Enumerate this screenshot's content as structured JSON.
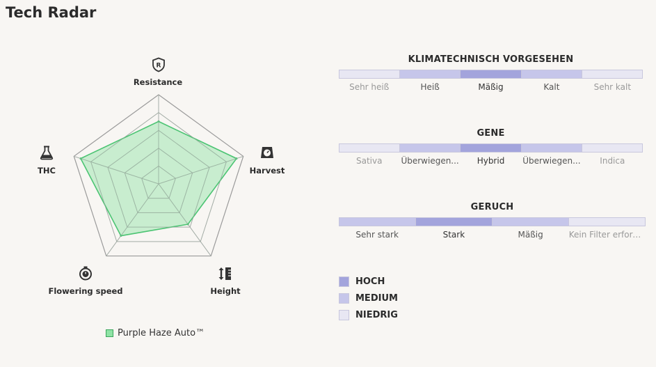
{
  "page": {
    "title": "Tech Radar"
  },
  "chart_data": {
    "type": "radar",
    "axes": [
      "Resistance",
      "Harvest",
      "Height",
      "Flowering speed",
      "THC"
    ],
    "axis_icons": [
      "shield-r-icon",
      "scale-icon",
      "height-ruler-icon",
      "stopwatch-icon",
      "flask-icon"
    ],
    "levels": 5,
    "range": [
      0,
      5
    ],
    "series": [
      {
        "name": "Purple Haze Auto™",
        "values": [
          3.5,
          4.6,
          2.8,
          3.6,
          4.6
        ],
        "fill": "#8fe3a5",
        "stroke": "#4cc473"
      }
    ]
  },
  "legend": {
    "label": "Purple Haze Auto™"
  },
  "scales": [
    {
      "title": "KLIMATECHNISCH VORGESEHEN",
      "segments": [
        {
          "label": "Sehr heiß",
          "level": "niedrig"
        },
        {
          "label": "Heiß",
          "level": "medium"
        },
        {
          "label": "Mäßig",
          "level": "hoch"
        },
        {
          "label": "Kalt",
          "level": "medium"
        },
        {
          "label": "Sehr kalt",
          "level": "niedrig"
        }
      ]
    },
    {
      "title": "GENE",
      "segments": [
        {
          "label": "Sativa",
          "level": "niedrig"
        },
        {
          "label": "Überwiegen...",
          "level": "medium"
        },
        {
          "label": "Hybrid",
          "level": "hoch"
        },
        {
          "label": "Überwiegen...",
          "level": "medium"
        },
        {
          "label": "Indica",
          "level": "niedrig"
        }
      ]
    },
    {
      "title": "GERUCH",
      "segments": [
        {
          "label": "Sehr stark",
          "level": "medium"
        },
        {
          "label": "Stark",
          "level": "hoch"
        },
        {
          "label": "Mäßig",
          "level": "medium"
        },
        {
          "label": "Kein Filter erforderlich",
          "level": "niedrig"
        }
      ]
    }
  ],
  "key": [
    {
      "label": "HOCH",
      "color": "#a3a4dc"
    },
    {
      "label": "MEDIUM",
      "color": "#c6c6ea"
    },
    {
      "label": "NIEDRIG",
      "color": "#e8e7f3"
    }
  ]
}
